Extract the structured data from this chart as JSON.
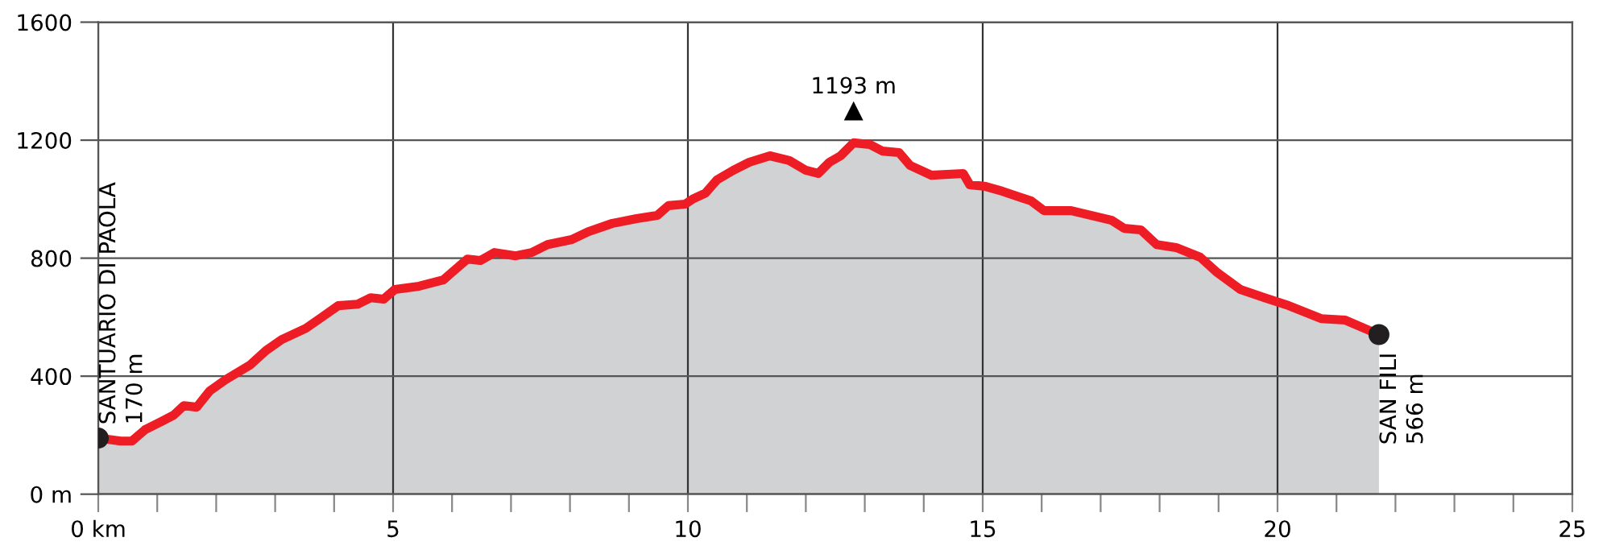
{
  "chart_data": {
    "type": "area",
    "x": [
      0,
      0.38,
      0.57,
      0.79,
      1.07,
      1.28,
      1.45,
      1.67,
      1.89,
      2.16,
      2.57,
      2.84,
      3.11,
      3.52,
      3.8,
      4.07,
      4.4,
      4.62,
      4.84,
      5.03,
      5.44,
      5.85,
      6.04,
      6.26,
      6.48,
      6.72,
      7.08,
      7.35,
      7.62,
      8.03,
      8.31,
      8.72,
      9.13,
      9.48,
      9.67,
      9.95,
      10.08,
      10.3,
      10.49,
      10.77,
      11.04,
      11.39,
      11.72,
      12.0,
      12.21,
      12.4,
      12.59,
      12.81,
      13.09,
      13.3,
      13.58,
      13.77,
      14.13,
      14.67,
      14.78,
      15.05,
      15.33,
      15.82,
      16.04,
      16.5,
      17.19,
      17.4,
      17.68,
      17.95,
      18.28,
      18.69,
      18.96,
      19.37,
      19.78,
      20.19,
      20.74,
      21.15,
      21.72
    ],
    "series": [
      {
        "color": "#ee1c25",
        "values": [
          190,
          180,
          180,
          218,
          246,
          268,
          300,
          295,
          350,
          388,
          437,
          486,
          524,
          562,
          601,
          639,
          644,
          666,
          661,
          694,
          705,
          726,
          759,
          797,
          792,
          819,
          808,
          819,
          846,
          863,
          890,
          918,
          934,
          945,
          978,
          983,
          1000,
          1021,
          1065,
          1098,
          1125,
          1147,
          1131,
          1098,
          1087,
          1125,
          1147,
          1191,
          1185,
          1163,
          1158,
          1114,
          1081,
          1087,
          1049,
          1043,
          1027,
          994,
          961,
          961,
          928,
          901,
          896,
          846,
          836,
          803,
          754,
          694,
          666,
          639,
          595,
          590,
          541
        ]
      }
    ],
    "xlim": [
      0,
      25
    ],
    "xticks": [
      {
        "value": 0,
        "label": "0 km"
      },
      {
        "value": 1,
        "label": null
      },
      {
        "value": 2,
        "label": null
      },
      {
        "value": 3,
        "label": null
      },
      {
        "value": 4,
        "label": null
      },
      5,
      {
        "value": 6,
        "label": null
      },
      {
        "value": 7,
        "label": null
      },
      {
        "value": 8,
        "label": null
      },
      {
        "value": 9,
        "label": null
      },
      10,
      {
        "value": 11,
        "label": null
      },
      {
        "value": 12,
        "label": null
      },
      {
        "value": 13,
        "label": null
      },
      {
        "value": 14,
        "label": null
      },
      15,
      {
        "value": 16,
        "label": null
      },
      {
        "value": 17,
        "label": null
      },
      {
        "value": 18,
        "label": null
      },
      {
        "value": 19,
        "label": null
      },
      20,
      {
        "value": 21,
        "label": null
      },
      {
        "value": 22,
        "label": null
      },
      {
        "value": 23,
        "label": null
      },
      {
        "value": 24,
        "label": null
      },
      25
    ],
    "ylim": [
      0,
      1600
    ],
    "yticks": [
      {
        "value": 0,
        "label": "0 m"
      },
      400,
      800,
      1200,
      1600
    ],
    "grid": true,
    "annotations": [
      {
        "text": "SANTUARIO DI PAOLA\n170 m",
        "x": 0,
        "y": 190
      },
      {
        "text": "1193 m",
        "x": 12.81,
        "y": 1191
      },
      {
        "text": "SAN FILI\n566 m",
        "x": 21.72,
        "y": 541
      }
    ]
  }
}
